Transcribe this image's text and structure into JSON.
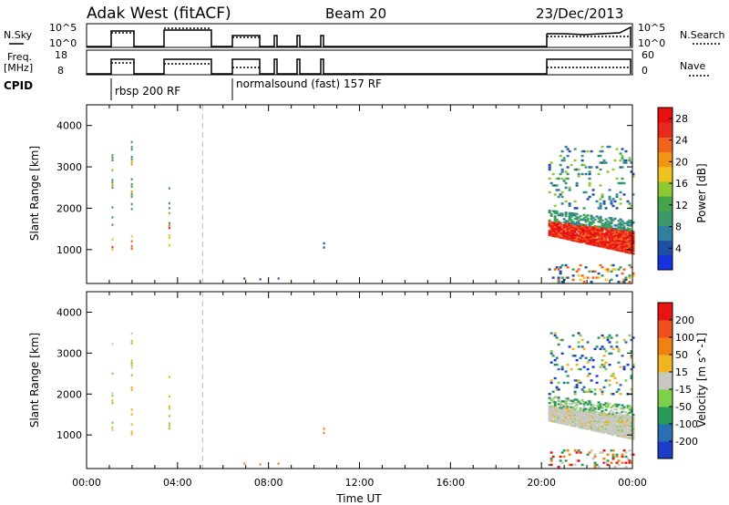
{
  "header": {
    "station": "Adak West (fitACF)",
    "beam": "Beam 20",
    "date": "23/Dec/2013"
  },
  "status_panels": {
    "nsky_label": "N.Sky",
    "freq_label_1": "Freq.",
    "freq_label_2": "[MHz]",
    "cpid_label": "CPID",
    "nsearch_label": "N.Search",
    "nave_label": "Nave",
    "nsky_ticks": [
      "10^5",
      "10^0"
    ],
    "nsearch_ticks": [
      "10^5",
      "10^0"
    ],
    "freq_ticks": [
      "18",
      "8"
    ],
    "nave_ticks": [
      "60",
      "0"
    ],
    "cpid_annotations": [
      "rbsp 200 RF",
      "normalsound (fast) 157 RF"
    ]
  },
  "chart_data": [
    {
      "type": "heatmap",
      "panel": "power",
      "xlabel": "",
      "ylabel": "Slant Range [km]",
      "xlim_hours": [
        0,
        24
      ],
      "ylim": [
        180,
        4500
      ],
      "yticks": [
        1000,
        2000,
        3000,
        4000
      ],
      "colorbar": {
        "label": "Power [dB]",
        "ticks": [
          4,
          8,
          12,
          16,
          20,
          24,
          28
        ],
        "colors": [
          "#1432e0",
          "#1e4fa0",
          "#2e7fa0",
          "#3a9a6a",
          "#44a44a",
          "#8ec832",
          "#f0c21e",
          "#f09414",
          "#f0641e",
          "#e82a1e",
          "#e80f0f"
        ]
      }
    },
    {
      "type": "heatmap",
      "panel": "velocity",
      "xlabel": "Time UT",
      "ylabel": "Slant Range [km]",
      "xlim_hours": [
        0,
        24
      ],
      "ylim": [
        180,
        4500
      ],
      "yticks": [
        1000,
        2000,
        3000,
        4000
      ],
      "xtick_labels": [
        "00:00",
        "04:00",
        "08:00",
        "12:00",
        "16:00",
        "20:00",
        "00:00"
      ],
      "colorbar": {
        "label": "Velocity [m s^-1]",
        "ticks": [
          "200",
          "100",
          "50",
          "15",
          "-15",
          "-50",
          "-100",
          "-200"
        ],
        "colors": [
          "#1d3cc8",
          "#2a6eb4",
          "#2a9a5a",
          "#7ed04a",
          "#c8c8c0",
          "#f0b41e",
          "#f08214",
          "#f0501e",
          "#e81414"
        ]
      }
    }
  ]
}
